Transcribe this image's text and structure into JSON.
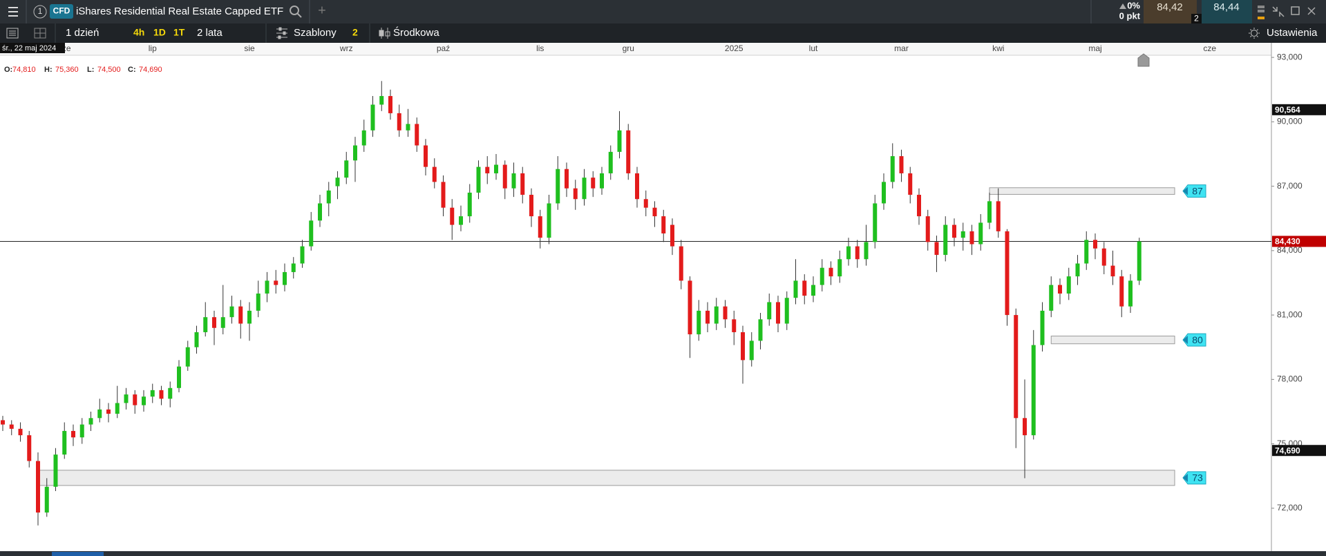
{
  "header": {
    "tab_number": "1",
    "badge": "CFD",
    "title": "iShares Residential Real Estate Capped ETF",
    "add_tab": "+",
    "change": "0%",
    "change_points": "0 pkt",
    "sell": "84,42",
    "spread": "2",
    "buy": "84,44"
  },
  "toolbar": {
    "interval": "1 dzień",
    "quick": [
      "4h",
      "1D",
      "1T"
    ],
    "range": "2 lata",
    "templates": "Szablony",
    "templates_count": "2",
    "mode": "Środkowa",
    "settings": "Ustawienia"
  },
  "chart_data": {
    "type": "candlestick",
    "crosshair": {
      "date": "śr., 22 maj 2024",
      "fields": [
        {
          "label": "O:",
          "value": "74,810"
        },
        {
          "label": "H:",
          "value": "75,360"
        },
        {
          "label": "L:",
          "value": "74,500"
        },
        {
          "label": "C:",
          "value": "74,690"
        }
      ]
    },
    "categories": [
      null,
      null,
      null,
      null,
      null,
      null,
      null,
      "cze",
      null,
      null,
      null,
      null,
      null,
      null,
      null,
      null,
      null,
      "lip",
      null,
      null,
      null,
      null,
      null,
      null,
      null,
      null,
      null,
      null,
      "sie",
      null,
      null,
      null,
      null,
      null,
      null,
      null,
      null,
      null,
      null,
      "wrz",
      null,
      null,
      null,
      null,
      null,
      null,
      null,
      null,
      null,
      null,
      "paź",
      null,
      null,
      null,
      null,
      null,
      null,
      null,
      null,
      null,
      null,
      "lis",
      null,
      null,
      null,
      null,
      null,
      null,
      null,
      null,
      null,
      "gru",
      null,
      null,
      null,
      null,
      null,
      null,
      null,
      null,
      null,
      null,
      null,
      "2025",
      null,
      null,
      null,
      null,
      null,
      null,
      null,
      null,
      "lut",
      null,
      null,
      null,
      null,
      null,
      null,
      null,
      null,
      null,
      "mar",
      null,
      null,
      null,
      null,
      null,
      null,
      null,
      null,
      null,
      null,
      "kwi",
      null,
      null,
      null,
      null,
      null,
      null,
      null,
      null,
      null,
      null,
      "maj",
      null,
      null,
      null,
      null,
      null,
      null,
      null,
      null,
      null,
      null,
      null,
      null,
      "cze"
    ],
    "ohlc": [
      [
        76.1,
        76.3,
        75.6,
        75.9
      ],
      [
        75.9,
        76.1,
        75.4,
        75.7
      ],
      [
        75.7,
        76.0,
        75.1,
        75.4
      ],
      [
        75.4,
        75.6,
        73.9,
        74.2
      ],
      [
        74.2,
        74.6,
        71.2,
        71.8
      ],
      [
        71.8,
        73.4,
        71.6,
        73.0
      ],
      [
        73.0,
        74.8,
        72.8,
        74.5
      ],
      [
        74.5,
        76.0,
        74.3,
        75.6
      ],
      [
        75.6,
        75.9,
        74.9,
        75.3
      ],
      [
        75.3,
        76.2,
        75.0,
        75.9
      ],
      [
        75.9,
        76.5,
        75.6,
        76.2
      ],
      [
        76.2,
        77.1,
        76.0,
        76.6
      ],
      [
        76.6,
        76.9,
        76.0,
        76.4
      ],
      [
        76.4,
        77.7,
        76.2,
        76.9
      ],
      [
        76.9,
        77.6,
        76.6,
        77.3
      ],
      [
        77.3,
        77.5,
        76.4,
        76.8
      ],
      [
        76.8,
        77.5,
        76.5,
        77.2
      ],
      [
        77.2,
        77.8,
        76.9,
        77.5
      ],
      [
        77.5,
        77.7,
        76.8,
        77.1
      ],
      [
        77.1,
        77.9,
        76.7,
        77.6
      ],
      [
        77.6,
        78.9,
        77.4,
        78.6
      ],
      [
        78.6,
        79.8,
        78.4,
        79.5
      ],
      [
        79.5,
        80.5,
        79.2,
        80.2
      ],
      [
        80.2,
        81.6,
        80.0,
        80.9
      ],
      [
        80.9,
        81.2,
        79.6,
        80.4
      ],
      [
        80.4,
        82.4,
        80.1,
        80.9
      ],
      [
        80.9,
        81.9,
        80.6,
        81.4
      ],
      [
        81.4,
        81.7,
        79.9,
        80.6
      ],
      [
        80.6,
        81.6,
        79.8,
        81.2
      ],
      [
        81.2,
        82.6,
        80.9,
        82.0
      ],
      [
        82.0,
        83.0,
        81.6,
        82.6
      ],
      [
        82.6,
        83.1,
        82.0,
        82.4
      ],
      [
        82.4,
        83.4,
        82.1,
        83.0
      ],
      [
        83.0,
        83.7,
        82.7,
        83.4
      ],
      [
        83.4,
        84.5,
        83.2,
        84.2
      ],
      [
        84.2,
        85.8,
        84.0,
        85.4
      ],
      [
        85.4,
        86.6,
        85.1,
        86.2
      ],
      [
        86.2,
        87.2,
        85.6,
        86.8
      ],
      [
        87.0,
        87.7,
        86.4,
        87.4
      ],
      [
        87.4,
        88.6,
        87.1,
        88.2
      ],
      [
        88.2,
        89.3,
        87.2,
        88.9
      ],
      [
        88.9,
        90.1,
        88.6,
        89.6
      ],
      [
        89.6,
        91.2,
        89.3,
        90.8
      ],
      [
        90.8,
        91.9,
        90.5,
        91.2
      ],
      [
        91.2,
        91.5,
        90.1,
        90.4
      ],
      [
        90.4,
        90.8,
        89.3,
        89.6
      ],
      [
        89.6,
        90.6,
        89.3,
        89.9
      ],
      [
        89.9,
        90.2,
        88.6,
        88.9
      ],
      [
        88.9,
        89.2,
        87.5,
        87.9
      ],
      [
        87.9,
        88.3,
        86.9,
        87.2
      ],
      [
        87.2,
        87.5,
        85.6,
        86.0
      ],
      [
        86.0,
        86.4,
        84.5,
        85.2
      ],
      [
        85.2,
        86.1,
        84.9,
        85.6
      ],
      [
        85.6,
        87.1,
        85.3,
        86.7
      ],
      [
        86.7,
        88.2,
        86.4,
        87.9
      ],
      [
        87.9,
        88.4,
        87.1,
        87.6
      ],
      [
        87.6,
        88.5,
        87.3,
        88.0
      ],
      [
        88.0,
        88.2,
        86.4,
        86.9
      ],
      [
        86.9,
        88.1,
        86.5,
        87.6
      ],
      [
        87.6,
        87.9,
        86.2,
        86.6
      ],
      [
        86.6,
        86.9,
        85.1,
        85.6
      ],
      [
        85.6,
        85.9,
        84.1,
        84.6
      ],
      [
        84.6,
        86.6,
        84.3,
        86.2
      ],
      [
        86.2,
        88.4,
        85.9,
        87.8
      ],
      [
        87.8,
        88.1,
        86.5,
        86.9
      ],
      [
        86.9,
        87.3,
        85.9,
        86.4
      ],
      [
        86.4,
        87.8,
        86.1,
        87.4
      ],
      [
        87.4,
        87.7,
        86.5,
        86.9
      ],
      [
        86.9,
        87.9,
        86.6,
        87.6
      ],
      [
        87.6,
        88.9,
        87.3,
        88.6
      ],
      [
        88.6,
        90.5,
        88.3,
        89.6
      ],
      [
        89.6,
        89.9,
        87.3,
        87.6
      ],
      [
        87.6,
        87.9,
        86.0,
        86.4
      ],
      [
        86.4,
        86.8,
        85.6,
        86.0
      ],
      [
        86.0,
        86.3,
        85.1,
        85.6
      ],
      [
        85.6,
        85.9,
        84.4,
        84.8
      ],
      [
        85.2,
        85.5,
        83.8,
        84.2
      ],
      [
        84.2,
        84.5,
        82.2,
        82.6
      ],
      [
        82.6,
        82.8,
        79.0,
        80.1
      ],
      [
        80.1,
        81.7,
        79.8,
        81.2
      ],
      [
        81.2,
        81.6,
        80.2,
        80.6
      ],
      [
        80.6,
        81.8,
        80.3,
        81.4
      ],
      [
        81.4,
        81.7,
        80.4,
        80.8
      ],
      [
        80.8,
        81.2,
        79.6,
        80.2
      ],
      [
        80.2,
        80.5,
        77.8,
        78.9
      ],
      [
        78.9,
        80.2,
        78.6,
        79.8
      ],
      [
        79.8,
        81.1,
        79.4,
        80.8
      ],
      [
        80.8,
        82.0,
        80.5,
        81.6
      ],
      [
        81.6,
        81.9,
        80.2,
        80.6
      ],
      [
        80.6,
        82.1,
        80.3,
        81.8
      ],
      [
        81.8,
        83.6,
        81.5,
        82.6
      ],
      [
        82.6,
        82.9,
        81.5,
        81.9
      ],
      [
        81.9,
        82.8,
        81.6,
        82.4
      ],
      [
        82.4,
        83.6,
        82.1,
        83.2
      ],
      [
        83.2,
        83.5,
        82.4,
        82.8
      ],
      [
        82.8,
        84.0,
        82.5,
        83.6
      ],
      [
        83.6,
        84.6,
        83.3,
        84.2
      ],
      [
        84.2,
        84.5,
        83.2,
        83.6
      ],
      [
        83.6,
        85.2,
        83.3,
        84.4
      ],
      [
        84.4,
        86.6,
        84.1,
        86.2
      ],
      [
        86.2,
        87.6,
        85.9,
        87.2
      ],
      [
        87.2,
        89.0,
        86.9,
        88.4
      ],
      [
        88.4,
        88.7,
        87.2,
        87.6
      ],
      [
        87.6,
        87.9,
        86.2,
        86.6
      ],
      [
        86.6,
        86.9,
        85.2,
        85.6
      ],
      [
        85.6,
        85.9,
        84.0,
        84.4
      ],
      [
        84.4,
        84.7,
        83.0,
        83.8
      ],
      [
        83.8,
        85.6,
        83.5,
        85.2
      ],
      [
        85.2,
        85.5,
        84.2,
        84.6
      ],
      [
        84.6,
        85.3,
        84.0,
        84.9
      ],
      [
        84.9,
        85.2,
        83.8,
        84.3
      ],
      [
        84.3,
        85.7,
        84.0,
        85.3
      ],
      [
        85.3,
        86.7,
        85.0,
        86.3
      ],
      [
        86.3,
        86.9,
        84.6,
        84.9
      ],
      [
        84.9,
        85.0,
        80.5,
        81.0
      ],
      [
        81.0,
        81.3,
        74.8,
        76.2
      ],
      [
        76.2,
        78.0,
        73.4,
        75.4
      ],
      [
        75.4,
        80.3,
        75.2,
        79.6
      ],
      [
        79.6,
        81.6,
        79.3,
        81.2
      ],
      [
        81.2,
        82.8,
        80.9,
        82.4
      ],
      [
        82.4,
        82.7,
        81.5,
        82.0
      ],
      [
        82.0,
        83.2,
        81.7,
        82.8
      ],
      [
        82.8,
        83.8,
        82.4,
        83.4
      ],
      [
        83.4,
        84.9,
        83.1,
        84.5
      ],
      [
        84.5,
        84.8,
        83.6,
        84.1
      ],
      [
        84.1,
        84.4,
        82.9,
        83.3
      ],
      [
        83.3,
        84.0,
        82.4,
        82.8
      ],
      [
        82.8,
        83.1,
        80.9,
        81.4
      ],
      [
        81.4,
        82.9,
        81.1,
        82.6
      ],
      [
        82.6,
        84.6,
        82.4,
        84.43
      ],
      null,
      null,
      null,
      null,
      null,
      null,
      null,
      null
    ],
    "ylim": [
      70,
      93.1
    ],
    "yticks": [
      {
        "value": 72,
        "label": "72,000"
      },
      {
        "value": 75,
        "label": "75,000"
      },
      {
        "value": 78,
        "label": "78,000"
      },
      {
        "value": 81,
        "label": "81,000"
      },
      {
        "value": 84,
        "label": "84,000"
      },
      {
        "value": 87,
        "label": "87,000"
      },
      {
        "value": 90,
        "label": "90,000"
      },
      {
        "value": 93,
        "label": "93,000"
      }
    ],
    "grid": false,
    "up_color": "#1fbf1f",
    "down_color": "#e31b1b",
    "wick_color": "#333333",
    "price_markers": [
      {
        "value": 90.564,
        "label": "90,564",
        "color": "#111111"
      },
      {
        "value": 84.43,
        "label": "84,430",
        "color": "#c00000",
        "line": true
      },
      {
        "value": 74.69,
        "label": "74,690",
        "color": "#111111"
      }
    ],
    "zones": [
      {
        "label": 87,
        "top": 86.93,
        "bottom": 86.62,
        "start": 112
      },
      {
        "label": 80,
        "top": 80.02,
        "bottom": 79.66,
        "start": 119
      },
      {
        "label": 73,
        "top": 73.77,
        "bottom": 73.06,
        "start": 4
      }
    ]
  }
}
